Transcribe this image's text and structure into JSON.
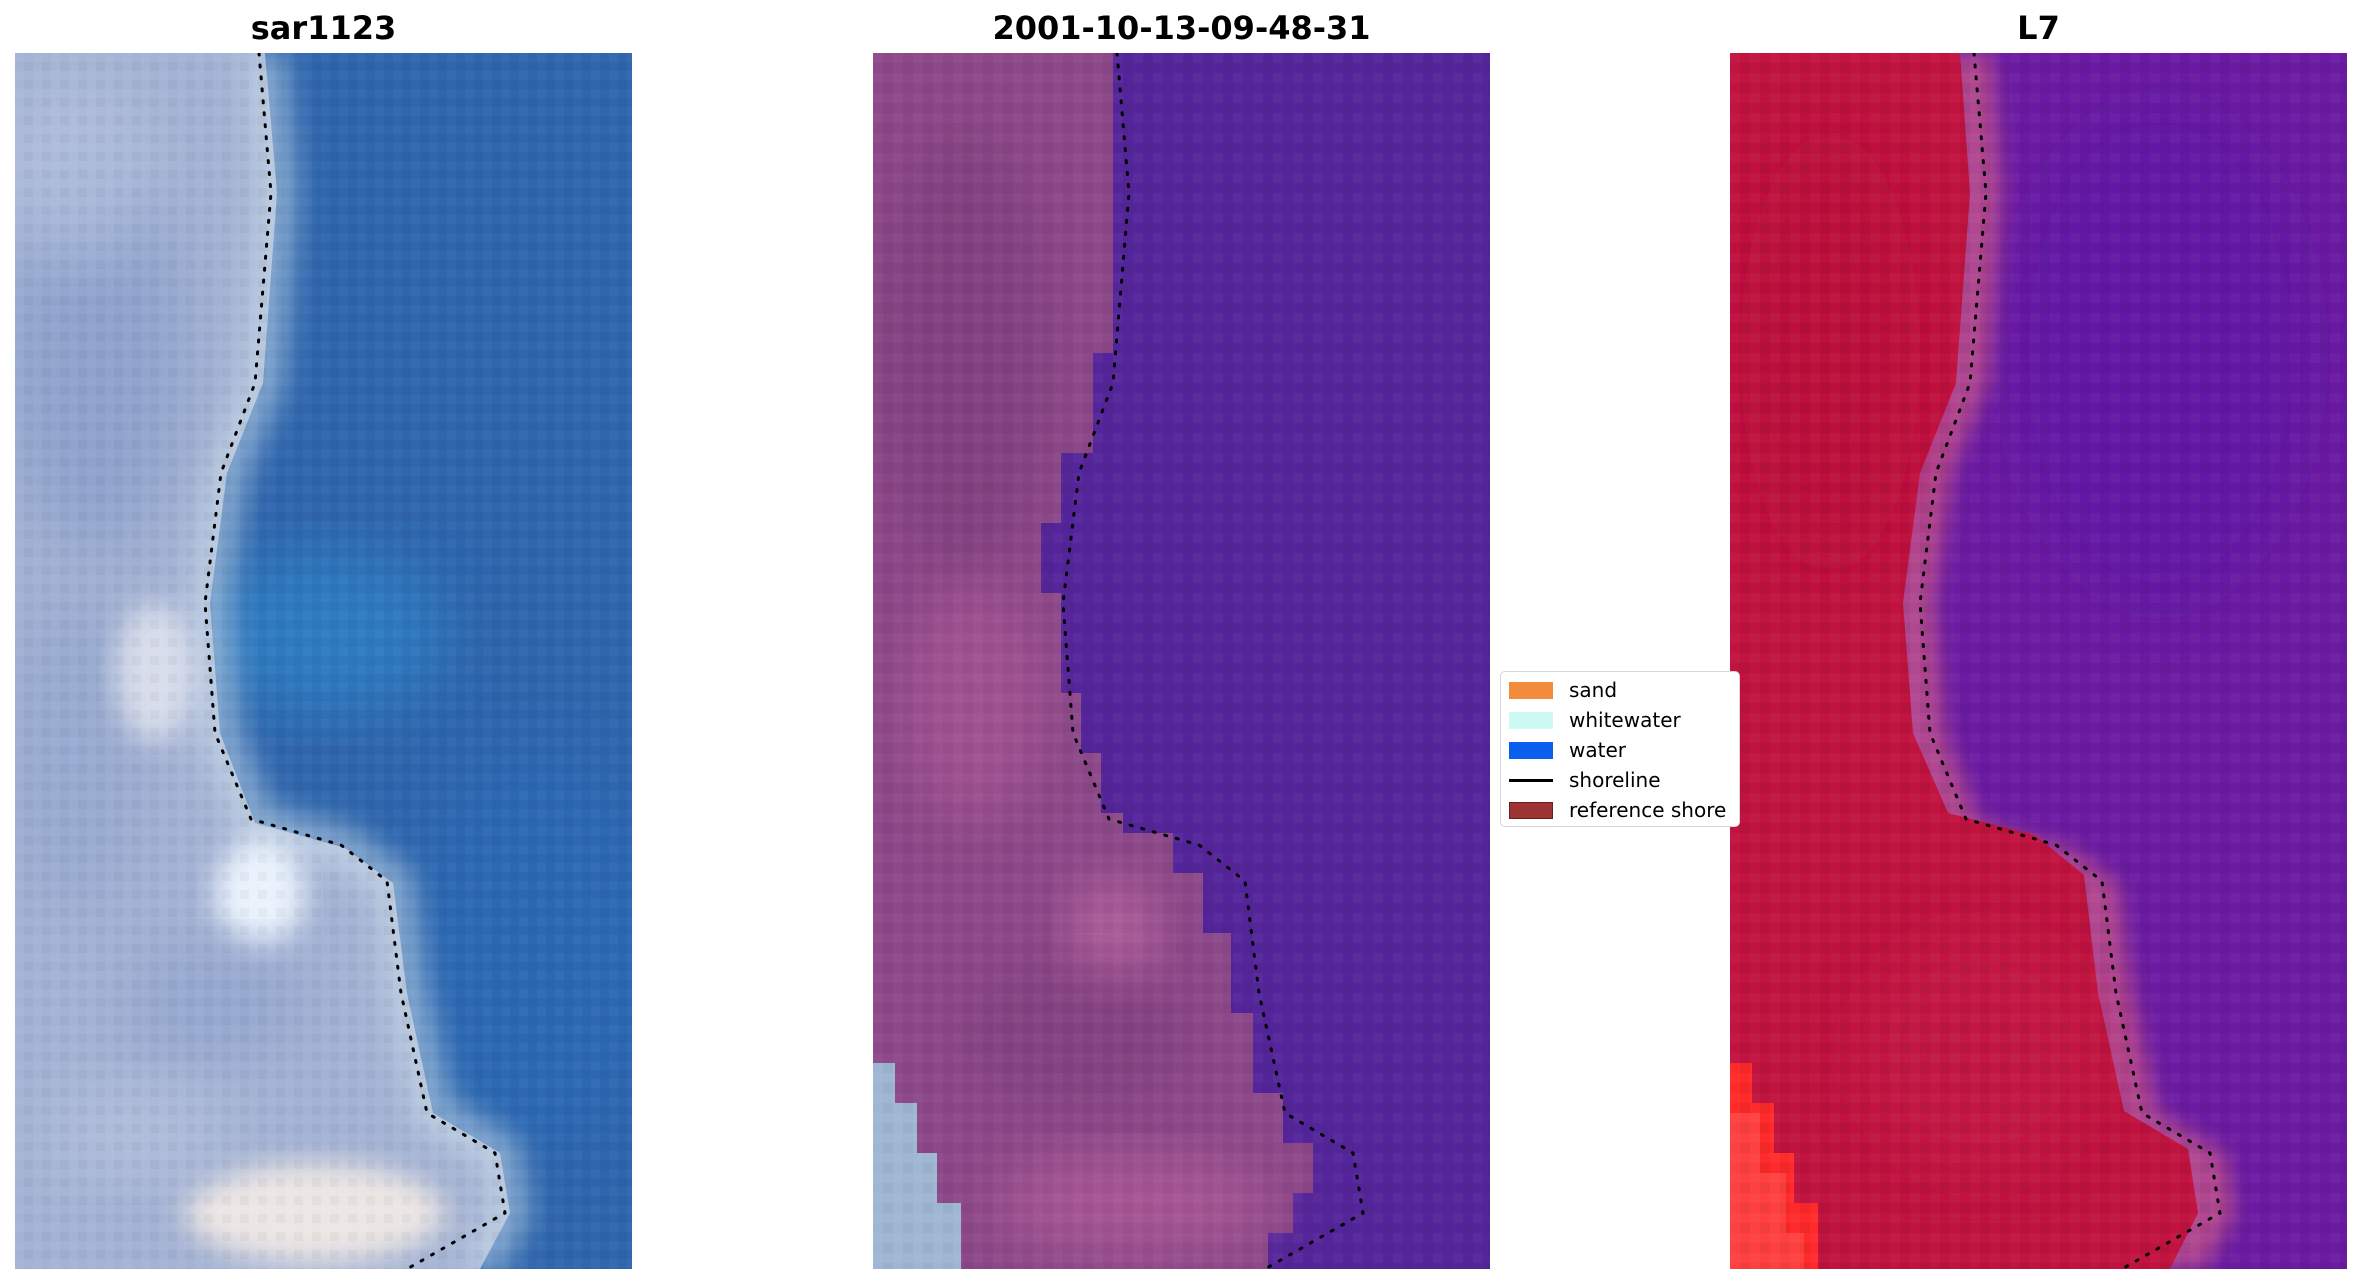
{
  "panels": [
    {
      "title": "sar1123"
    },
    {
      "title": "2001-10-13-09-48-31"
    },
    {
      "title": "L7"
    }
  ],
  "legend": {
    "items": [
      {
        "label": "sand",
        "color": "#f28b3c"
      },
      {
        "label": "whitewater",
        "color": "#cdfaf5"
      },
      {
        "label": "water",
        "color": "#0a5ff0"
      },
      {
        "label": "shoreline",
        "color": "#000000"
      },
      {
        "label": "reference shore",
        "color": "#9e3333"
      }
    ]
  },
  "colors": {
    "ocean_rgb": "#2f68b0",
    "land_rgb": "#a9b9d8",
    "water_class": "#54259a",
    "land_class": "#8e4a8a",
    "ndwi_land": "#c4143e",
    "ndwi_water": "#6a1aa0"
  }
}
